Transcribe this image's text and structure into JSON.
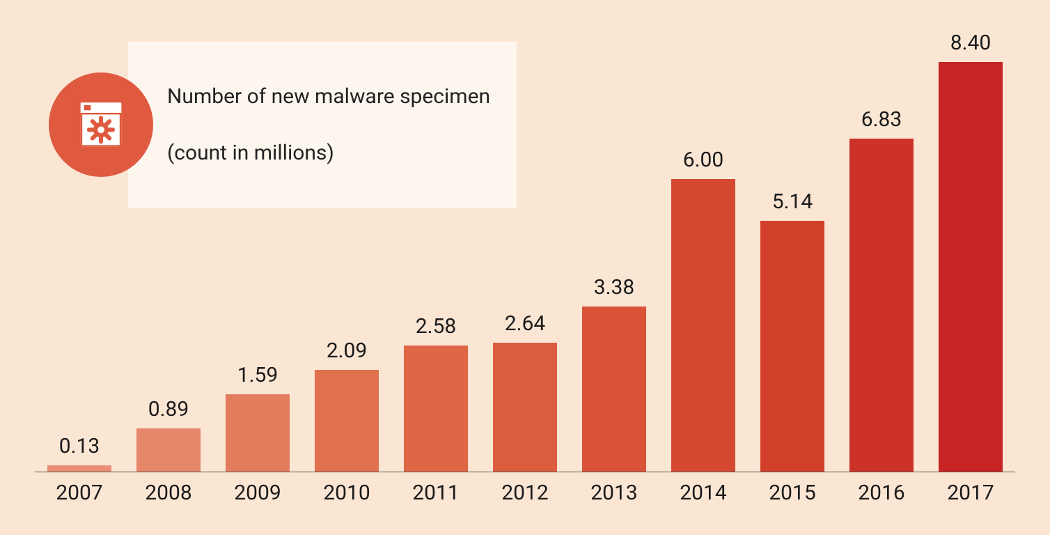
{
  "chart": {
    "type": "bar",
    "title_line1": "Number of new malware specimen",
    "title_line2": "(count in millions)",
    "background_color": "#fbe6d4",
    "legend_bg_color": "#fdf6ee",
    "icon_circle_color": "#df5a3f",
    "icon_glyph_color": "#ffffff",
    "axis_line_color": "#555555",
    "value_text_color": "#1a1a1a",
    "label_text_color": "#1a1a1a",
    "value_fontsize": 30,
    "label_fontsize": 30,
    "title_fontsize": 30,
    "ylim_max": 8.4,
    "bar_width_ratio": 0.72,
    "categories": [
      "2007",
      "2008",
      "2009",
      "2010",
      "2011",
      "2012",
      "2013",
      "2014",
      "2015",
      "2016",
      "2017"
    ],
    "values": [
      0.13,
      0.89,
      1.59,
      2.09,
      2.58,
      2.64,
      3.38,
      6.0,
      5.14,
      6.83,
      8.4
    ],
    "value_labels": [
      "0.13",
      "0.89",
      "1.59",
      "2.09",
      "2.58",
      "2.64",
      "3.38",
      "6.00",
      "5.14",
      "6.83",
      "8.40"
    ],
    "bar_colors": [
      "#e88f76",
      "#e68668",
      "#e37c5c",
      "#e0704e",
      "#de6644",
      "#db5d3d",
      "#d85337",
      "#d54931",
      "#d2402c",
      "#cc3228",
      "#c72424"
    ]
  }
}
